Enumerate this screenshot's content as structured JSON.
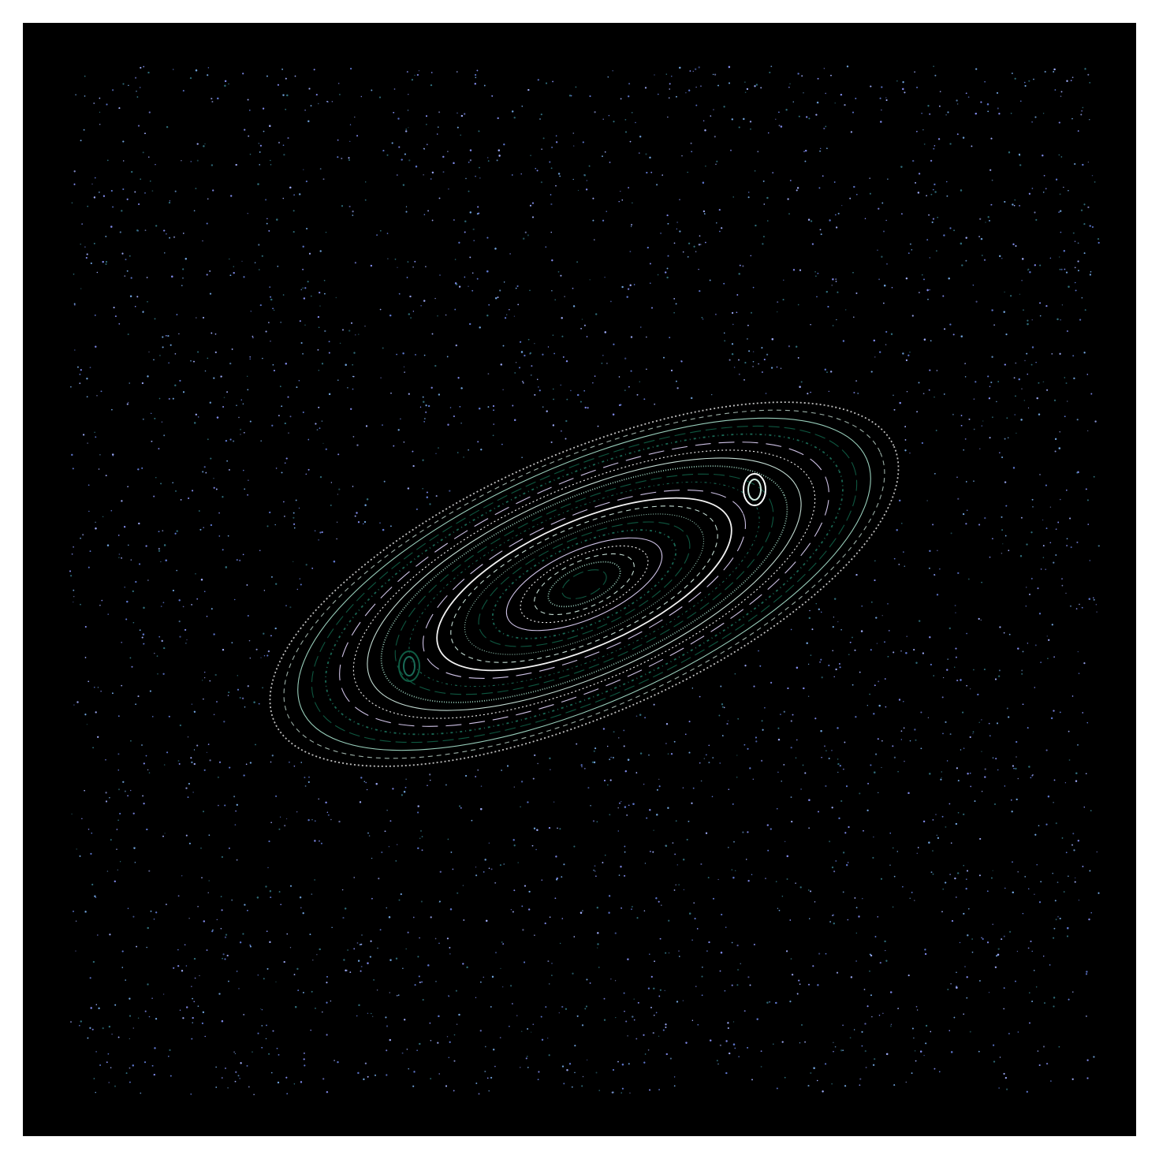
{
  "image": {
    "subject": "phase-space-orbit-plot",
    "background_color": "#000000",
    "page_background": "#ffffff",
    "palette": {
      "chaotic_dots": [
        "#7e88e6",
        "#5c74c8",
        "#6fa0d8",
        "#2f6b78",
        "#9aa6f0"
      ],
      "island_curves": [
        "#ffffff",
        "#cfe9df",
        "#9fd8c4",
        "#0f5c43",
        "#1a6b57",
        "#d9ccf2"
      ]
    }
  }
}
